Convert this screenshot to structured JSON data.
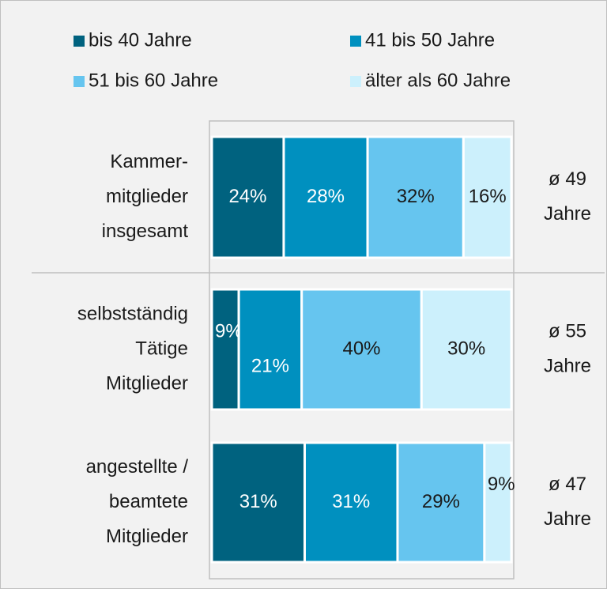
{
  "chart_data": {
    "type": "stacked-bar-horizontal",
    "categories": [
      [
        "Kammer-",
        "mitglieder",
        "insgesamt"
      ],
      [
        "selbstständig",
        "Tätige",
        "Mitglieder"
      ],
      [
        "angestellte /",
        "beamtete",
        "Mitglieder"
      ]
    ],
    "annotations": [
      [
        "ø 49",
        "Jahre"
      ],
      [
        "ø 55",
        "Jahre"
      ],
      [
        "ø 47",
        "Jahre"
      ]
    ],
    "xlim": [
      0,
      100
    ],
    "series": [
      {
        "name": "bis 40 Jahre",
        "color": "#00627f",
        "label_color": "#ffffff",
        "values": [
          24,
          9,
          31
        ],
        "value_labels": [
          "24%",
          "9%",
          "31%"
        ]
      },
      {
        "name": "41 bis 50 Jahre",
        "color": "#0090bf",
        "label_color": "#ffffff",
        "values": [
          28,
          21,
          31
        ],
        "value_labels": [
          "28%",
          "21%",
          "31%"
        ]
      },
      {
        "name": "51 bis 60 Jahre",
        "color": "#66c5ef",
        "label_color": "#1a1a1a",
        "values": [
          32,
          40,
          29
        ],
        "value_labels": [
          "32%",
          "40%",
          "29%"
        ]
      },
      {
        "name": "älter als 60 Jahre",
        "color": "#ccf0fc",
        "label_color": "#1a1a1a",
        "values": [
          16,
          30,
          9
        ],
        "value_labels": [
          "16%",
          "30%",
          "9%"
        ]
      }
    ]
  }
}
